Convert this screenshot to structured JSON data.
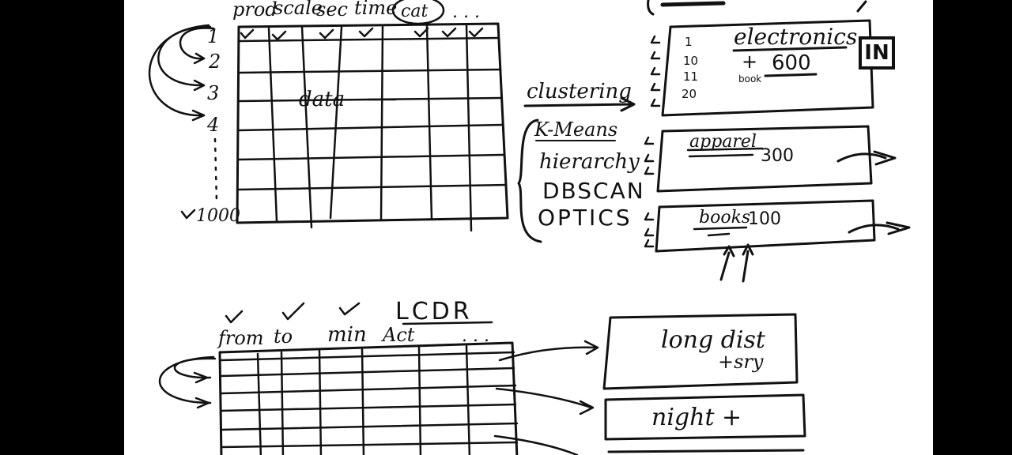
{
  "top_table": {
    "columns": [
      "prod",
      "scale",
      "sec",
      "time",
      "cat"
    ],
    "ellipsis": ". . .",
    "rows": [
      "1",
      "2",
      "3",
      "4",
      "1000"
    ],
    "center_label": "data"
  },
  "method_header": "clustering",
  "methods": [
    "K-Means",
    "hierarchy",
    "DBSCAN",
    "OPTICS"
  ],
  "clusters": [
    {
      "label": "electronics",
      "count": "600",
      "sub": "book",
      "row_ids": [
        "1",
        "10",
        "11",
        "20"
      ]
    },
    {
      "label": "apparel",
      "count": "300"
    },
    {
      "label": "books",
      "count": "100"
    }
  ],
  "bottom_table": {
    "columns": [
      "from",
      "to",
      "min",
      "Act"
    ],
    "extra": "LCDR",
    "ellipsis": ". . ."
  },
  "bottom_boxes": [
    {
      "line1": "long dist",
      "line2": "+sry"
    },
    {
      "line1": "night +"
    }
  ],
  "logo": "IN",
  "colors": {
    "ink": "#111111",
    "board": "#ffffff",
    "frame": "#000000"
  }
}
